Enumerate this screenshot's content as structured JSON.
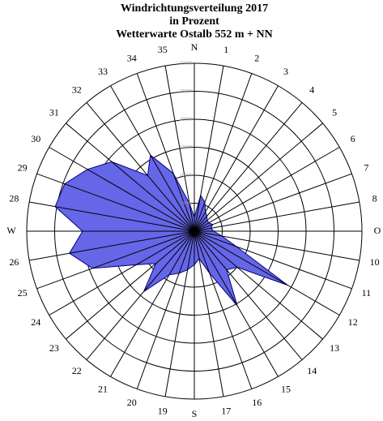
{
  "chart_data": {
    "type": "radar",
    "title": [
      "Windrichtungsverteilung 2017",
      "in Prozent",
      "Wetterwarte Ostalb 552 m + NN"
    ],
    "categories": [
      "N",
      "1",
      "2",
      "3",
      "4",
      "5",
      "6",
      "7",
      "8",
      "O",
      "10",
      "11",
      "12",
      "13",
      "14",
      "15",
      "16",
      "17",
      "S",
      "19",
      "20",
      "21",
      "22",
      "23",
      "24",
      "25",
      "26",
      "W",
      "28",
      "29",
      "30",
      "31",
      "32",
      "33",
      "34",
      "35"
    ],
    "values": [
      2500,
      6500,
      5500,
      4000,
      3500,
      3000,
      3000,
      3500,
      3000,
      3500,
      5000,
      8000,
      19300,
      10000,
      9000,
      15400,
      8000,
      5000,
      6000,
      7000,
      8000,
      9000,
      14100,
      9000,
      12000,
      19400,
      22700,
      20000,
      25300,
      24700,
      22100,
      19300,
      13000,
      15700,
      11000,
      5000
    ],
    "color": "#6666e8",
    "ylim": [
      0,
      30000
    ],
    "yticks": [
      5000,
      10000,
      15000,
      20000,
      25000,
      30000
    ]
  }
}
